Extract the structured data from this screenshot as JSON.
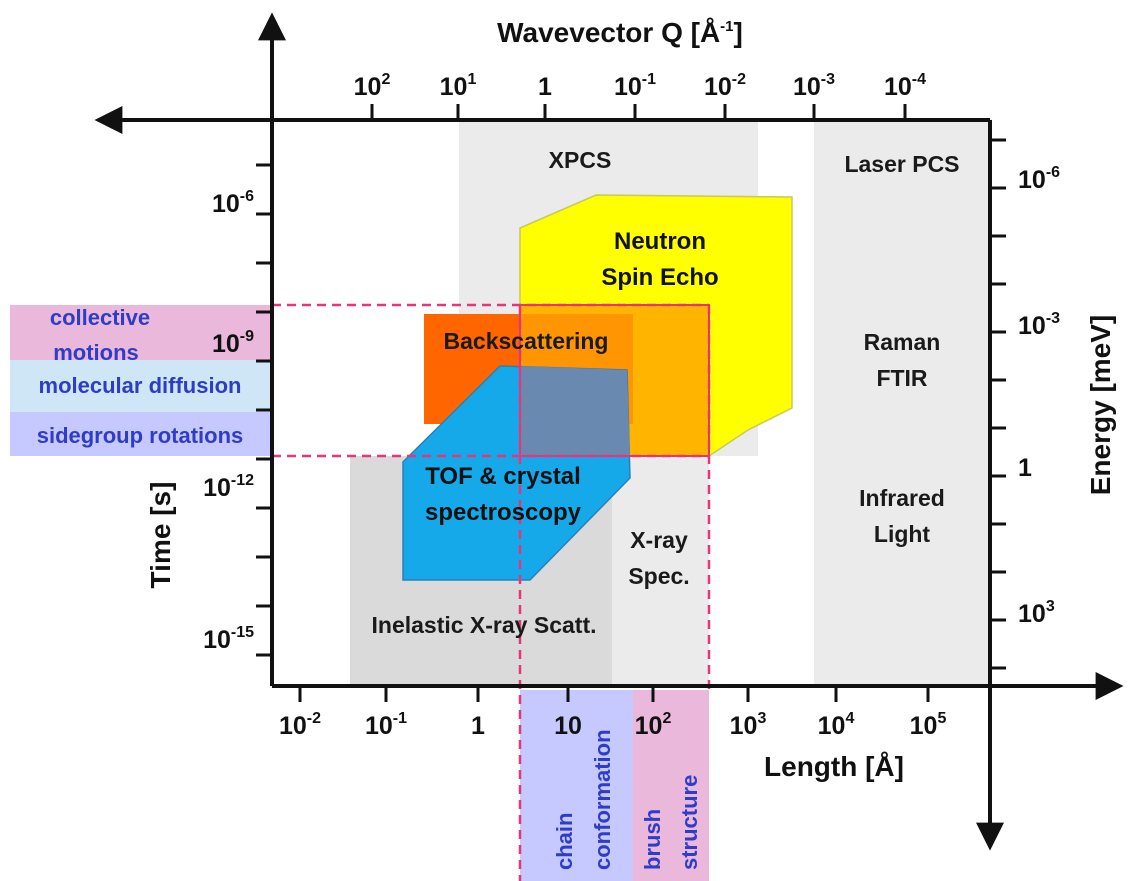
{
  "axes": {
    "top_title": "Wavevector Q [Å",
    "top_title_sup": "-1",
    "top_title_end": "]",
    "bottom_title": "Length [Å]",
    "left_title": "Time [s]",
    "right_title": "Energy [meV]",
    "top_ticks": [
      {
        "base": "10",
        "exp": "2"
      },
      {
        "base": "10",
        "exp": "1"
      },
      {
        "base": "1",
        "exp": ""
      },
      {
        "base": "10",
        "exp": "-1"
      },
      {
        "base": "10",
        "exp": "-2"
      },
      {
        "base": "10",
        "exp": "-3"
      },
      {
        "base": "10",
        "exp": "-4"
      }
    ],
    "bottom_ticks": [
      {
        "base": "10",
        "exp": "-2"
      },
      {
        "base": "10",
        "exp": "-1"
      },
      {
        "base": "1",
        "exp": ""
      },
      {
        "base": "10",
        "exp": ""
      },
      {
        "base": "10",
        "exp": "2"
      },
      {
        "base": "10",
        "exp": "3"
      },
      {
        "base": "10",
        "exp": "4"
      },
      {
        "base": "10",
        "exp": "5"
      }
    ],
    "left_ticks": [
      {
        "base": "10",
        "exp": "-6"
      },
      {
        "base": "10",
        "exp": "-9"
      },
      {
        "base": "10",
        "exp": "-12"
      },
      {
        "base": "10",
        "exp": "-15"
      }
    ],
    "right_ticks": [
      {
        "base": "10",
        "exp": "-6"
      },
      {
        "base": "10",
        "exp": "-3"
      },
      {
        "base": "1",
        "exp": ""
      },
      {
        "base": "10",
        "exp": "3"
      }
    ]
  },
  "regions": {
    "xpcs": "XPCS",
    "laser_pcs": "Laser PCS",
    "neutron_spin_echo_line1": "Neutron",
    "neutron_spin_echo_line2": "Spin Echo",
    "backscattering": "Backscattering",
    "tof_line1": "TOF & crystal",
    "tof_line2": "spectroscopy",
    "xray_spec_line1": "X-ray",
    "xray_spec_line2": "Spec.",
    "raman_line1": "Raman",
    "raman_line2": "FTIR",
    "infrared_line1": "Infrared",
    "infrared_line2": "Light",
    "inelastic_xray": "Inelastic X-ray Scatt."
  },
  "bands": {
    "collective_line1": "collective",
    "collective_line2": "motions",
    "molecular_diffusion": "molecular diffusion",
    "sidegroup_rotations": "sidegroup rotations",
    "chain_line1": "chain",
    "chain_line2": "conformation",
    "brush_line1": "brush",
    "brush_line2": "structure"
  },
  "colors": {
    "neutron_spin_echo": "#ffff00",
    "backscattering": "#ff6600",
    "overlap": "#ffb400",
    "tof": "#16a9ea",
    "tof_overlap": "#6a89b0",
    "grey_light": "#ebebeb",
    "grey_dark": "#dadada",
    "band_pink": "#eab8da",
    "band_lightblue": "#cfe6f6",
    "band_lavender": "#c6c9ff",
    "band_text": "#2e3cc8",
    "dash": "#e8357a"
  }
}
